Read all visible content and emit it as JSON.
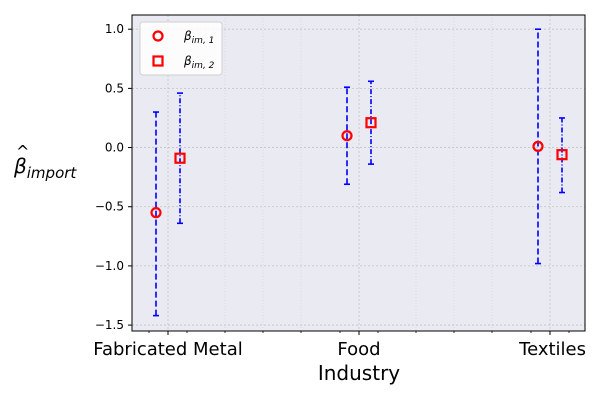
{
  "chart_data": {
    "type": "errorbar",
    "xlabel": "Industry",
    "ylabel": {
      "base": "β",
      "sub": "import"
    },
    "categories": [
      "Fabricated Metal",
      "Food",
      "Textiles"
    ],
    "ylim": [
      -1.55,
      1.12
    ],
    "yticks": [
      1.0,
      0.5,
      0.0,
      -0.5,
      -1.0,
      -1.5
    ],
    "ytick_labels": [
      "1.0",
      "0.5",
      "0.0",
      "−0.5",
      "−1.0",
      "−1.5"
    ],
    "grid": true,
    "legend_position": "top-left",
    "series": [
      {
        "name": "β_im,1",
        "legend_base": "β",
        "legend_sub": "im, 1",
        "marker": "circle",
        "marker_color": "#ff0000",
        "bar_color": "#0000ff",
        "bar_style": "dashed",
        "values": [
          -0.55,
          0.1,
          0.01
        ],
        "lower": [
          -1.42,
          -0.31,
          -0.98
        ],
        "upper": [
          0.3,
          0.51,
          1.0
        ]
      },
      {
        "name": "β_im,2",
        "legend_base": "β",
        "legend_sub": "im, 2",
        "marker": "square",
        "marker_color": "#ff0000",
        "bar_color": "#0000ff",
        "bar_style": "dashdot",
        "values": [
          -0.09,
          0.21,
          -0.06
        ],
        "lower": [
          -0.64,
          -0.14,
          -0.38
        ],
        "upper": [
          0.46,
          0.56,
          0.25
        ]
      }
    ]
  }
}
